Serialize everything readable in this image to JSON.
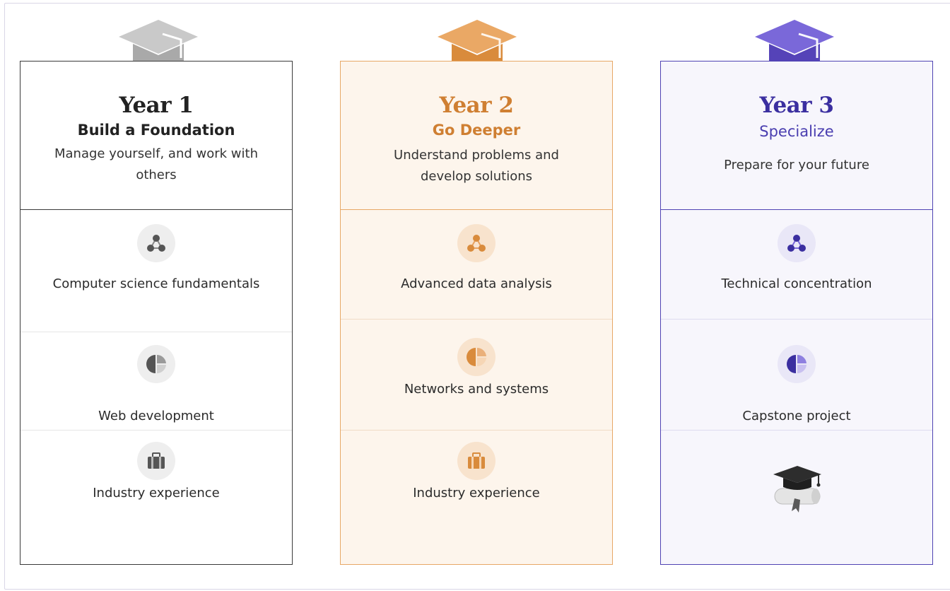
{
  "colors": {
    "year1": "#333333",
    "year2": "#e8a25f",
    "year3": "#4f43b3"
  },
  "years": [
    {
      "year": "Year 1",
      "subtitle": "Build a Foundation",
      "description": "Manage yourself, and work with others",
      "items": [
        {
          "icon": "network-nodes-icon",
          "label": "Computer science fundamentals"
        },
        {
          "icon": "pie-chart-icon",
          "label": "Web development"
        },
        {
          "icon": "briefcase-icon",
          "label": "Industry experience"
        }
      ]
    },
    {
      "year": "Year 2",
      "subtitle": "Go Deeper",
      "description": "Understand problems and develop solutions",
      "items": [
        {
          "icon": "network-nodes-icon",
          "label": "Advanced data analysis"
        },
        {
          "icon": "pie-chart-icon",
          "label": "Networks and systems"
        },
        {
          "icon": "briefcase-icon",
          "label": "Industry experience"
        }
      ]
    },
    {
      "year": "Year 3",
      "subtitle": "Specialize",
      "description": "Prepare for your future",
      "items": [
        {
          "icon": "network-nodes-icon",
          "label": "Technical concentration"
        },
        {
          "icon": "pie-chart-icon",
          "label": "Capstone project"
        },
        {
          "icon": "graduation-diploma-icon",
          "label": ""
        }
      ]
    }
  ]
}
